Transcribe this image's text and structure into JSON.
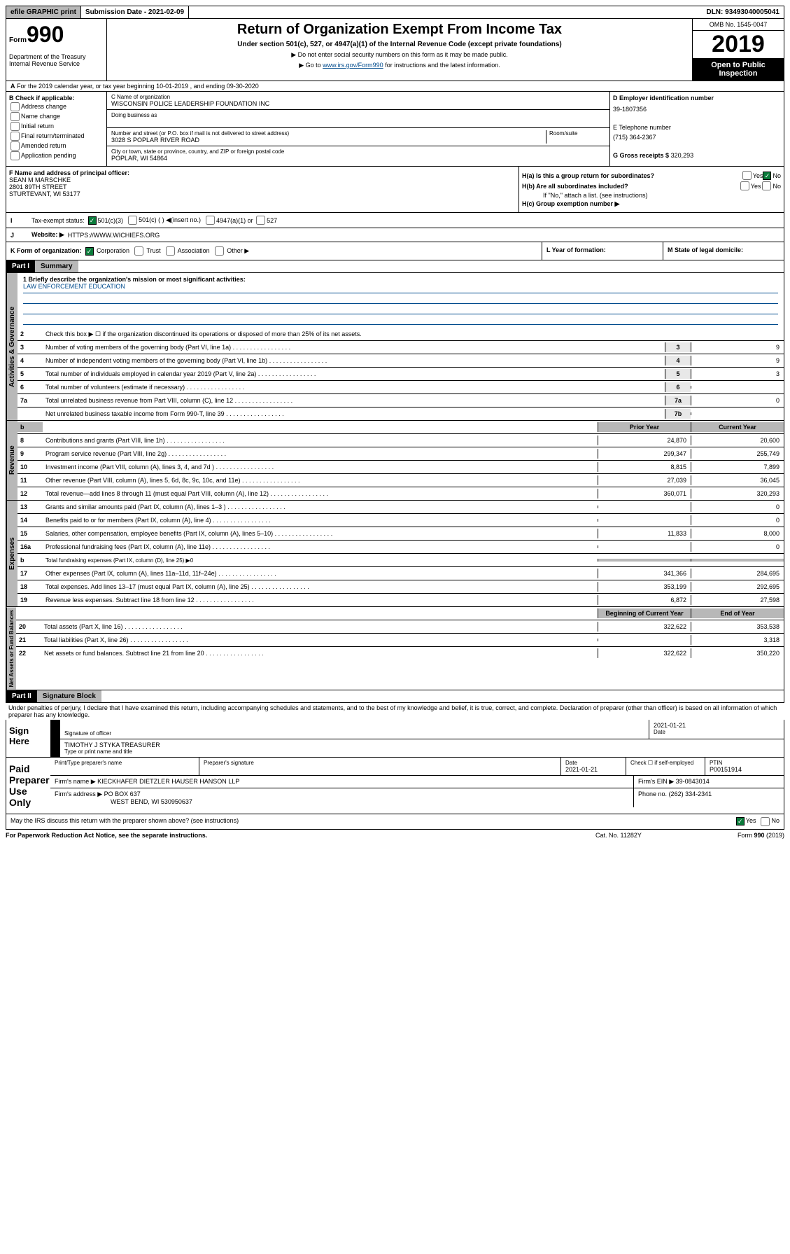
{
  "top": {
    "efile": "efile GRAPHIC print",
    "submission": "Submission Date - 2021-02-09",
    "dln": "DLN: 93493040005041"
  },
  "header": {
    "form_prefix": "Form",
    "form_num": "990",
    "dept": "Department of the Treasury Internal Revenue Service",
    "title": "Return of Organization Exempt From Income Tax",
    "subtitle": "Under section 501(c), 527, or 4947(a)(1) of the Internal Revenue Code (except private foundations)",
    "instr1": "▶ Do not enter social security numbers on this form as it may be made public.",
    "instr2_pre": "▶ Go to ",
    "instr2_link": "www.irs.gov/Form990",
    "instr2_post": " for instructions and the latest information.",
    "omb": "OMB No. 1545-0047",
    "year": "2019",
    "inspection": "Open to Public Inspection"
  },
  "row_a": "For the 2019 calendar year, or tax year beginning 10-01-2019    , and ending 09-30-2020",
  "col_b": {
    "label": "B Check if applicable:",
    "opts": [
      "Address change",
      "Name change",
      "Initial return",
      "Final return/terminated",
      "Amended return",
      "Application pending"
    ]
  },
  "col_c": {
    "name_label": "C Name of organization",
    "name": "WISCONSIN POLICE LEADERSHIP FOUNDATION INC",
    "dba_label": "Doing business as",
    "addr_label": "Number and street (or P.O. box if mail is not delivered to street address)",
    "room_label": "Room/suite",
    "addr": "3028 S POPLAR RIVER ROAD",
    "city_label": "City or town, state or province, country, and ZIP or foreign postal code",
    "city": "POPLAR, WI  54864"
  },
  "col_d": {
    "ein_label": "D Employer identification number",
    "ein": "39-1807356",
    "tel_label": "E Telephone number",
    "tel": "(715) 364-2367",
    "gross_label": "G Gross receipts $",
    "gross": "320,293"
  },
  "col_f": {
    "label": "F  Name and address of principal officer:",
    "name": "SEAN M MARSCHKE",
    "addr1": "2801 89TH STREET",
    "addr2": "STURTEVANT, WI  53177"
  },
  "col_h": {
    "a_label": "H(a)  Is this a group return for subordinates?",
    "b_label": "H(b)  Are all subordinates included?",
    "b_note": "If \"No,\" attach a list. (see instructions)",
    "c_label": "H(c)  Group exemption number ▶"
  },
  "status": {
    "label": "Tax-exempt status:",
    "opt1": "501(c)(3)",
    "opt2": "501(c) (  ) ◀(insert no.)",
    "opt3": "4947(a)(1) or",
    "opt4": "527"
  },
  "website": {
    "label": "Website: ▶",
    "val": "HTTPS://WWW.WICHIEFS.ORG"
  },
  "row_k": {
    "k_label": "K Form of organization:",
    "k_opts": [
      "Corporation",
      "Trust",
      "Association",
      "Other ▶"
    ],
    "l_label": "L Year of formation:",
    "m_label": "M State of legal domicile:"
  },
  "part1": {
    "header": "Part I",
    "title": "Summary",
    "q1": "1  Briefly describe the organization's mission or most significant activities:",
    "mission": "LAW ENFORCEMENT EDUCATION",
    "q2": "Check this box ▶ ☐  if the organization discontinued its operations or disposed of more than 25% of its net assets.",
    "vlabels": {
      "gov": "Activities & Governance",
      "rev": "Revenue",
      "exp": "Expenses",
      "net": "Net Assets or Fund Balances"
    },
    "lines_gov": [
      {
        "n": "3",
        "t": "Number of voting members of the governing body (Part VI, line 1a)",
        "c": "3",
        "v": "9"
      },
      {
        "n": "4",
        "t": "Number of independent voting members of the governing body (Part VI, line 1b)",
        "c": "4",
        "v": "9"
      },
      {
        "n": "5",
        "t": "Total number of individuals employed in calendar year 2019 (Part V, line 2a)",
        "c": "5",
        "v": "3"
      },
      {
        "n": "6",
        "t": "Total number of volunteers (estimate if necessary)",
        "c": "6",
        "v": ""
      },
      {
        "n": "7a",
        "t": "Total unrelated business revenue from Part VIII, column (C), line 12",
        "c": "7a",
        "v": "0"
      },
      {
        "n": "",
        "t": "Net unrelated business taxable income from Form 990-T, line 39",
        "c": "7b",
        "v": ""
      }
    ],
    "col_headers": {
      "prior": "Prior Year",
      "current": "Current Year",
      "begin": "Beginning of Current Year",
      "end": "End of Year"
    },
    "lines_rev": [
      {
        "n": "8",
        "t": "Contributions and grants (Part VIII, line 1h)",
        "p": "24,870",
        "c": "20,600"
      },
      {
        "n": "9",
        "t": "Program service revenue (Part VIII, line 2g)",
        "p": "299,347",
        "c": "255,749"
      },
      {
        "n": "10",
        "t": "Investment income (Part VIII, column (A), lines 3, 4, and 7d )",
        "p": "8,815",
        "c": "7,899"
      },
      {
        "n": "11",
        "t": "Other revenue (Part VIII, column (A), lines 5, 6d, 8c, 9c, 10c, and 11e)",
        "p": "27,039",
        "c": "36,045"
      },
      {
        "n": "12",
        "t": "Total revenue—add lines 8 through 11 (must equal Part VIII, column (A), line 12)",
        "p": "360,071",
        "c": "320,293"
      }
    ],
    "lines_exp": [
      {
        "n": "13",
        "t": "Grants and similar amounts paid (Part IX, column (A), lines 1–3 )",
        "p": "",
        "c": "0"
      },
      {
        "n": "14",
        "t": "Benefits paid to or for members (Part IX, column (A), line 4)",
        "p": "",
        "c": "0"
      },
      {
        "n": "15",
        "t": "Salaries, other compensation, employee benefits (Part IX, column (A), lines 5–10)",
        "p": "11,833",
        "c": "8,000"
      },
      {
        "n": "16a",
        "t": "Professional fundraising fees (Part IX, column (A), line 11e)",
        "p": "",
        "c": "0"
      },
      {
        "n": "b",
        "t": "Total fundraising expenses (Part IX, column (D), line 25) ▶0",
        "p": null,
        "c": null
      },
      {
        "n": "17",
        "t": "Other expenses (Part IX, column (A), lines 11a–11d, 11f–24e)",
        "p": "341,366",
        "c": "284,695"
      },
      {
        "n": "18",
        "t": "Total expenses. Add lines 13–17 (must equal Part IX, column (A), line 25)",
        "p": "353,199",
        "c": "292,695"
      },
      {
        "n": "19",
        "t": "Revenue less expenses. Subtract line 18 from line 12",
        "p": "6,872",
        "c": "27,598"
      }
    ],
    "lines_net": [
      {
        "n": "20",
        "t": "Total assets (Part X, line 16)",
        "p": "322,622",
        "c": "353,538"
      },
      {
        "n": "21",
        "t": "Total liabilities (Part X, line 26)",
        "p": "",
        "c": "3,318"
      },
      {
        "n": "22",
        "t": "Net assets or fund balances. Subtract line 21 from line 20",
        "p": "322,622",
        "c": "350,220"
      }
    ]
  },
  "part2": {
    "header": "Part II",
    "title": "Signature Block",
    "decl": "Under penalties of perjury, I declare that I have examined this return, including accompanying schedules and statements, and to the best of my knowledge and belief, it is true, correct, and complete. Declaration of preparer (other than officer) is based on all information of which preparer has any knowledge."
  },
  "sign": {
    "label": "Sign Here",
    "sig_label": "Signature of officer",
    "date": "2021-01-21",
    "date_label": "Date",
    "name": "TIMOTHY J STYKA  TREASURER",
    "name_label": "Type or print name and title"
  },
  "paid": {
    "label": "Paid Preparer Use Only",
    "h1": "Print/Type preparer's name",
    "h2": "Preparer's signature",
    "h3": "Date",
    "date": "2021-01-21",
    "h4": "Check ☐ if self-employed",
    "h5": "PTIN",
    "ptin": "P00151914",
    "firm_label": "Firm's name    ▶",
    "firm": "KIECKHAFER DIETZLER HAUSER HANSON LLP",
    "ein_label": "Firm's EIN ▶",
    "ein": "39-0843014",
    "addr_label": "Firm's address ▶",
    "addr1": "PO BOX 637",
    "addr2": "WEST BEND, WI  530950637",
    "phone_label": "Phone no.",
    "phone": "(262) 334-2341"
  },
  "discuss": "May the IRS discuss this return with the preparer shown above? (see instructions)",
  "footer": {
    "left": "For Paperwork Reduction Act Notice, see the separate instructions.",
    "mid": "Cat. No. 11282Y",
    "right": "Form 990 (2019)"
  }
}
